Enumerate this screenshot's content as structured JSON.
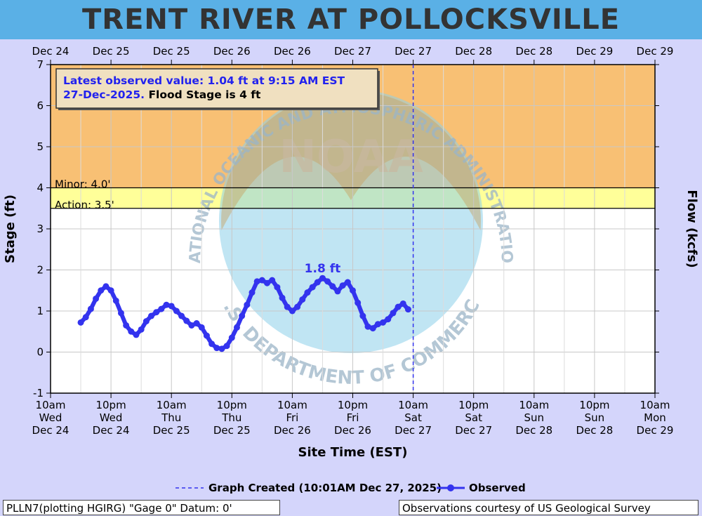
{
  "title": "TRENT RIVER AT POLLOCKSVILLE",
  "latest_observed": {
    "line1": "Latest observed value: 1.04 ft at 9:15 AM EST",
    "line2_date": "27-Dec-2025.",
    "line2_flood": "Flood Stage is 4 ft"
  },
  "thresholds": [
    {
      "label": "Minor: 4.0'",
      "value": 4.0,
      "color": "#f8c074"
    },
    {
      "label": "Action: 3.5'",
      "value": 3.5,
      "color": "#ffff99"
    }
  ],
  "peak_label": "1.8 ft",
  "footer": {
    "left": "PLLN7(plotting HGIRG) \"Gage 0\" Datum: 0'",
    "right": "Observations courtesy of US Geological Survey"
  },
  "legend": {
    "created": "Graph Created (10:01AM Dec 27, 2025)",
    "observed": "Observed"
  },
  "watermark": {
    "text_top": "NATIONAL OCEANIC AND ATMOSPHERIC ADMINISTRATION",
    "text_bottom": "U.S. DEPARTMENT OF COMMERCE",
    "center": "NOAA"
  },
  "chart_data": {
    "type": "line",
    "ylabel": "Stage (ft)",
    "y2label": "Flow (kcfs)",
    "xlabel": "Site Time (EST)",
    "ylim": [
      -1,
      7
    ],
    "yticks": [
      -1,
      0,
      1,
      2,
      3,
      4,
      5,
      6,
      7
    ],
    "xlim_hours": [
      0,
      120
    ],
    "top_ticks": [
      "Dec 24",
      "Dec 25",
      "Dec 25",
      "Dec 26",
      "Dec 26",
      "Dec 27",
      "Dec 27",
      "Dec 28",
      "Dec 28",
      "Dec 29",
      "Dec 29"
    ],
    "bottom_ticks": [
      [
        "10am",
        "Wed",
        "Dec 24"
      ],
      [
        "10pm",
        "Wed",
        "Dec 24"
      ],
      [
        "10am",
        "Thu",
        "Dec 25"
      ],
      [
        "10pm",
        "Thu",
        "Dec 25"
      ],
      [
        "10am",
        "Fri",
        "Dec 26"
      ],
      [
        "10pm",
        "Fri",
        "Dec 26"
      ],
      [
        "10am",
        "Sat",
        "Dec 27"
      ],
      [
        "10pm",
        "Sat",
        "Dec 27"
      ],
      [
        "10am",
        "Sun",
        "Dec 28"
      ],
      [
        "10pm",
        "Sun",
        "Dec 28"
      ],
      [
        "10am",
        "Mon",
        "Dec 29"
      ]
    ],
    "graph_created_hour": 72,
    "grid": true,
    "series": [
      {
        "name": "Observed",
        "color": "#3333ee",
        "points": [
          [
            6,
            0.72
          ],
          [
            7,
            0.85
          ],
          [
            8,
            1.05
          ],
          [
            9,
            1.3
          ],
          [
            10,
            1.5
          ],
          [
            11,
            1.6
          ],
          [
            12,
            1.5
          ],
          [
            13,
            1.25
          ],
          [
            14,
            0.95
          ],
          [
            15,
            0.65
          ],
          [
            16,
            0.5
          ],
          [
            17,
            0.42
          ],
          [
            18,
            0.55
          ],
          [
            19,
            0.75
          ],
          [
            20,
            0.88
          ],
          [
            21,
            0.97
          ],
          [
            22,
            1.05
          ],
          [
            23,
            1.15
          ],
          [
            24,
            1.12
          ],
          [
            25,
            1.0
          ],
          [
            26,
            0.88
          ],
          [
            27,
            0.76
          ],
          [
            28,
            0.65
          ],
          [
            29,
            0.7
          ],
          [
            30,
            0.6
          ],
          [
            31,
            0.4
          ],
          [
            32,
            0.2
          ],
          [
            33,
            0.1
          ],
          [
            34,
            0.08
          ],
          [
            35,
            0.15
          ],
          [
            36,
            0.35
          ],
          [
            37,
            0.6
          ],
          [
            38,
            0.88
          ],
          [
            39,
            1.15
          ],
          [
            40,
            1.45
          ],
          [
            41,
            1.72
          ],
          [
            42,
            1.75
          ],
          [
            43,
            1.68
          ],
          [
            44,
            1.75
          ],
          [
            45,
            1.58
          ],
          [
            46,
            1.32
          ],
          [
            47,
            1.1
          ],
          [
            48,
            1.0
          ],
          [
            49,
            1.1
          ],
          [
            50,
            1.28
          ],
          [
            51,
            1.45
          ],
          [
            52,
            1.58
          ],
          [
            53,
            1.7
          ],
          [
            54,
            1.8
          ],
          [
            55,
            1.72
          ],
          [
            56,
            1.6
          ],
          [
            57,
            1.48
          ],
          [
            58,
            1.62
          ],
          [
            59,
            1.7
          ],
          [
            60,
            1.5
          ],
          [
            61,
            1.2
          ],
          [
            62,
            0.88
          ],
          [
            63,
            0.62
          ],
          [
            64,
            0.58
          ],
          [
            65,
            0.68
          ],
          [
            66,
            0.72
          ],
          [
            67,
            0.8
          ],
          [
            68,
            0.95
          ],
          [
            69,
            1.1
          ],
          [
            70,
            1.18
          ],
          [
            71,
            1.04
          ]
        ]
      }
    ],
    "peak": {
      "x": 54,
      "y": 1.8
    }
  }
}
